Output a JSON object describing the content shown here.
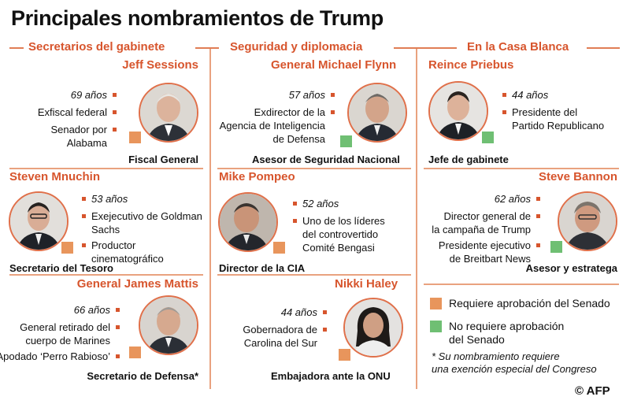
{
  "title": "Principales nombramientos de Trump",
  "colors": {
    "accent": "#d7552d",
    "senate_required": "#e8955c",
    "no_senate": "#6fbf73"
  },
  "sections": {
    "cabinet": "Secretarios del gabinete",
    "security": "Seguridad y diplomacia",
    "white_house": "En la Casa Blanca"
  },
  "people": [
    {
      "name": "Jeff Sessions",
      "age": "69 años",
      "details": [
        "Exfiscal federal",
        "Senador por",
        "Alabama"
      ],
      "role": "Fiscal General",
      "approval": "senate_required"
    },
    {
      "name": "Steven Mnuchin",
      "age": "53 años",
      "details": [
        "Exejecutivo de Goldman",
        "Sachs",
        "Productor",
        "cinematográfico"
      ],
      "role": "Secretario del Tesoro",
      "approval": "senate_required"
    },
    {
      "name": "General James Mattis",
      "age": "66 años",
      "details": [
        "General retirado del",
        "cuerpo de Marines",
        "Apodado ‘Perro Rabioso’"
      ],
      "role": "Secretario de Defensa*",
      "approval": "senate_required"
    },
    {
      "name": "General Michael Flynn",
      "age": "57 años",
      "details": [
        "Exdirector de la",
        "Agencia de Inteligencia",
        "de Defensa"
      ],
      "role": "Asesor de Seguridad Nacional",
      "approval": "no_senate"
    },
    {
      "name": "Mike Pompeo",
      "age": "52 años",
      "details": [
        "Uno de los líderes",
        "del controvertido",
        "Comité Bengasi"
      ],
      "role": "Director de la CIA",
      "approval": "senate_required"
    },
    {
      "name": "Nikki Haley",
      "age": "44 años",
      "details": [
        "Gobernadora de",
        "Carolina del Sur"
      ],
      "role": "Embajadora ante la ONU",
      "approval": "senate_required"
    },
    {
      "name": "Reince Priebus",
      "age": "44 años",
      "details": [
        "Presidente del",
        "Partido Republicano"
      ],
      "role": "Jefe de gabinete",
      "approval": "no_senate"
    },
    {
      "name": "Steve Bannon",
      "age": "62 años",
      "details": [
        "Director general de",
        "la campaña de Trump",
        "Presidente ejecutivo",
        "de Breitbart News"
      ],
      "role": "Asesor y estratega",
      "approval": "no_senate"
    }
  ],
  "legend": {
    "senate_required": "Requiere aprobación del Senado",
    "no_senate_line1": "No requiere aprobación",
    "no_senate_line2": "del Senado",
    "note_line1": "* Su nombramiento requiere",
    "note_line2": "una exención especial del Congreso"
  },
  "credit": "© AFP"
}
